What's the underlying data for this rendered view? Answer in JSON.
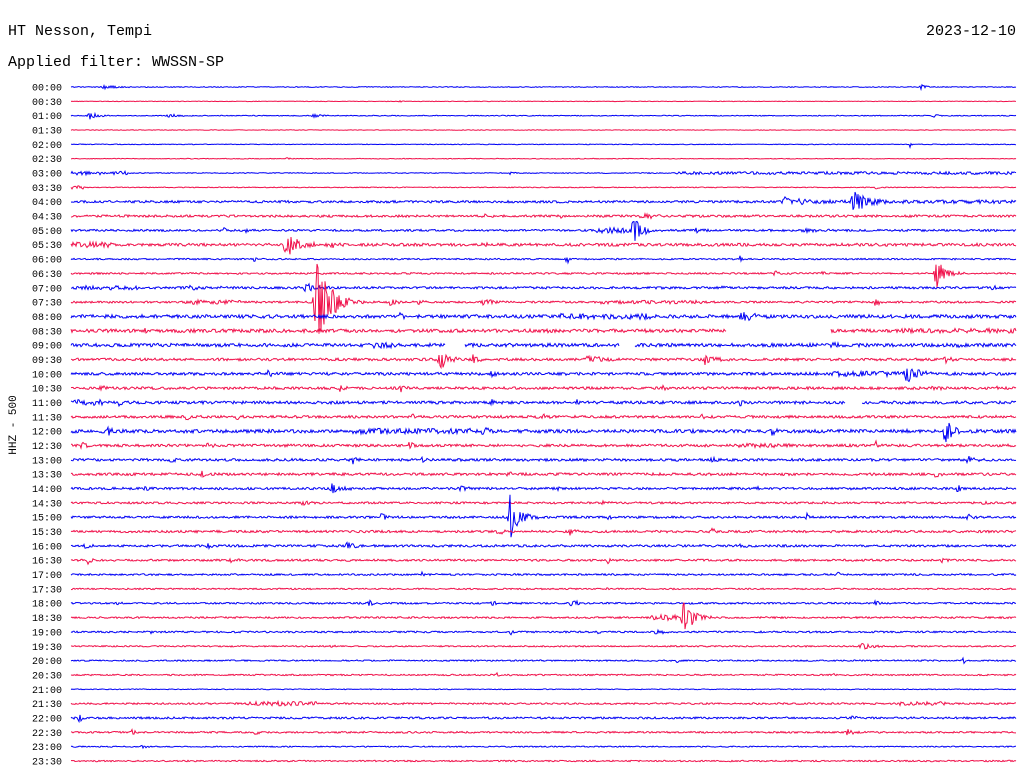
{
  "chart_data": {
    "type": "line",
    "title": "HT Nesson, Tempi",
    "date": "2023-12-10",
    "subtitle": "Applied filter: WWSSN-SP",
    "ylabel": "HHZ - 500",
    "xlim": [
      0,
      30
    ],
    "colors": [
      "#0000f5",
      "#f0104a"
    ],
    "rows": [
      {
        "label": "00:00",
        "noise": 0.03,
        "events": [
          [
            0.9,
            0.15,
            1.2
          ],
          [
            26.9,
            0.22,
            0.5
          ]
        ]
      },
      {
        "label": "00:30",
        "noise": 0.02,
        "events": [
          [
            10.4,
            0.12,
            0.2
          ]
        ]
      },
      {
        "label": "01:00",
        "noise": 0.03,
        "events": [
          [
            0.5,
            0.28,
            0.8
          ],
          [
            3.0,
            0.12,
            0.9
          ],
          [
            7.6,
            0.14,
            0.8
          ],
          [
            27.3,
            0.12,
            0.5
          ]
        ]
      },
      {
        "label": "01:30",
        "noise": 0.02
      },
      {
        "label": "02:00",
        "noise": 0.025,
        "events": [
          [
            26.6,
            0.25,
            0.2
          ]
        ]
      },
      {
        "label": "02:30",
        "noise": 0.025,
        "events": [
          [
            6.8,
            0.08,
            0.3
          ]
        ]
      },
      {
        "label": "03:00",
        "noise": 0.03,
        "noisy": [
          [
            0,
            1.8,
            0.12
          ],
          [
            19.2,
            30,
            0.1
          ]
        ],
        "events": [
          [
            13.9,
            0.1,
            0.3
          ]
        ]
      },
      {
        "label": "03:30",
        "noise": 0.03,
        "noisy": [
          [
            0,
            0.4,
            0.12
          ]
        ],
        "events": [
          [
            25.5,
            0.15,
            0.3
          ]
        ]
      },
      {
        "label": "04:00",
        "noise": 0.08,
        "noisy": [
          [
            23.0,
            30,
            0.12
          ]
        ],
        "events": [
          [
            22.5,
            0.3,
            1.5
          ],
          [
            24.73,
            1.2,
            0.9
          ]
        ]
      },
      {
        "label": "04:30",
        "noise": 0.08,
        "events": [
          [
            13.0,
            0.2,
            0.5
          ],
          [
            15.5,
            0.12,
            0.5
          ],
          [
            18.0,
            0.2,
            1.3
          ]
        ]
      },
      {
        "label": "05:00",
        "noise": 0.07,
        "noisy": [
          [
            16.6,
            17.8,
            0.2
          ]
        ],
        "events": [
          [
            4.8,
            0.25,
            0.3
          ],
          [
            5.5,
            0.3,
            0.3
          ],
          [
            17.75,
            1.05,
            0.8
          ],
          [
            19.8,
            0.25,
            0.4
          ],
          [
            23.1,
            0.15,
            1.6
          ]
        ]
      },
      {
        "label": "05:30",
        "noise": 0.1,
        "noisy": [
          [
            0,
            1.3,
            0.2
          ]
        ],
        "events": [
          [
            6.7,
            0.9,
            1.2
          ],
          [
            8.2,
            0.2,
            0.5
          ],
          [
            13.0,
            0.12,
            0.5
          ],
          [
            23.3,
            0.2,
            0.3
          ]
        ]
      },
      {
        "label": "06:00",
        "noise": 0.05,
        "events": [
          [
            5.8,
            0.3,
            0.2
          ],
          [
            15.7,
            0.35,
            0.3
          ],
          [
            21.2,
            0.25,
            0.2
          ]
        ]
      },
      {
        "label": "06:30",
        "noise": 0.06,
        "events": [
          [
            22.3,
            0.25,
            0.3
          ],
          [
            23.8,
            0.2,
            0.3
          ],
          [
            27.36,
            1.1,
            0.8
          ]
        ]
      },
      {
        "label": "07:00",
        "noise": 0.08,
        "noisy": [
          [
            0,
            2.2,
            0.15
          ]
        ],
        "events": [
          [
            3.6,
            0.2,
            1.5
          ],
          [
            7.3,
            0.25,
            1.3
          ],
          [
            18.7,
            0.15,
            0.5
          ],
          [
            20.6,
            0.15,
            0.5
          ],
          [
            29.2,
            0.2,
            0.3
          ]
        ]
      },
      {
        "label": "07:30",
        "noise": 0.07,
        "noisy": [
          [
            3.6,
            5.4,
            0.15
          ],
          [
            16.8,
            20.0,
            0.12
          ]
        ],
        "events": [
          [
            7.65,
            3.0,
            1.3
          ],
          [
            10.1,
            0.35,
            0.4
          ],
          [
            11.0,
            0.3,
            0.3
          ],
          [
            13.0,
            0.25,
            1.0
          ],
          [
            25.5,
            0.5,
            0.3
          ]
        ]
      },
      {
        "label": "08:00",
        "noise": 0.12,
        "noisy": [
          [
            15.5,
            18.5,
            0.2
          ]
        ],
        "events": [
          [
            10.4,
            0.35,
            0.4
          ],
          [
            21.2,
            0.4,
            1.0
          ],
          [
            29.2,
            0.2,
            0.3
          ]
        ]
      },
      {
        "label": "08:30",
        "noise": 0.12,
        "gaps": [
          [
            20.8,
            24.1
          ]
        ],
        "noisy": [
          [
            26.3,
            30,
            0.16
          ]
        ],
        "events": [
          [
            2.3,
            0.2,
            0.4
          ],
          [
            15.0,
            0.2,
            0.4
          ]
        ]
      },
      {
        "label": "09:00",
        "noise": 0.12,
        "gaps": [
          [
            11.9,
            12.5
          ],
          [
            17.4,
            17.9
          ]
        ],
        "events": [
          [
            9.5,
            0.3,
            1.6
          ],
          [
            24.1,
            0.25,
            0.4
          ],
          [
            28.1,
            0.2,
            0.4
          ]
        ]
      },
      {
        "label": "09:30",
        "noise": 0.09,
        "events": [
          [
            11.62,
            0.8,
            0.7
          ],
          [
            12.7,
            0.35,
            0.6
          ],
          [
            16.3,
            0.3,
            1.1
          ],
          [
            20.06,
            0.55,
            0.7
          ],
          [
            27.7,
            0.25,
            0.4
          ]
        ]
      },
      {
        "label": "10:00",
        "noise": 0.1,
        "noisy": [
          [
            24.1,
            26.4,
            0.18
          ]
        ],
        "events": [
          [
            6.2,
            0.3,
            0.5
          ],
          [
            13.3,
            0.2,
            0.4
          ],
          [
            26.41,
            0.7,
            1.0
          ]
        ]
      },
      {
        "label": "10:30",
        "noise": 0.09,
        "events": [
          [
            0.9,
            0.3,
            0.3
          ],
          [
            8.5,
            0.25,
            0.3
          ],
          [
            10.4,
            0.4,
            0.3
          ],
          [
            18.7,
            0.2,
            0.4
          ],
          [
            27.3,
            0.3,
            0.4
          ],
          [
            29.2,
            0.25,
            0.4
          ]
        ]
      },
      {
        "label": "11:00",
        "noise": 0.1,
        "gaps": [
          [
            24.6,
            25.1
          ]
        ],
        "noisy": [
          [
            0,
            1.0,
            0.2
          ]
        ],
        "events": [
          [
            1.5,
            0.4,
            0.2
          ],
          [
            13.3,
            0.3,
            0.3
          ],
          [
            16.0,
            0.3,
            0.3
          ],
          [
            21.2,
            0.35,
            0.3
          ]
        ]
      },
      {
        "label": "11:30",
        "noise": 0.09,
        "events": [
          [
            3.6,
            0.3,
            0.4
          ],
          [
            5.2,
            0.3,
            0.3
          ],
          [
            10.8,
            0.25,
            0.3
          ],
          [
            14.9,
            0.25,
            0.4
          ],
          [
            19.97,
            0.2,
            0.4
          ]
        ]
      },
      {
        "label": "12:00",
        "noise": 0.12,
        "noisy": [
          [
            8.9,
            12.7,
            0.2
          ]
        ],
        "events": [
          [
            1.1,
            0.3,
            0.5
          ],
          [
            13.0,
            0.35,
            0.6
          ],
          [
            22.2,
            0.25,
            0.4
          ],
          [
            27.68,
            1.1,
            0.6
          ]
        ]
      },
      {
        "label": "12:30",
        "noise": 0.09,
        "noisy": [
          [
            21.2,
            23.1,
            0.14
          ]
        ],
        "events": [
          [
            0.3,
            0.3,
            0.3
          ],
          [
            4.3,
            0.3,
            0.3
          ],
          [
            10.7,
            0.3,
            0.3
          ],
          [
            25.5,
            0.35,
            0.3
          ]
        ]
      },
      {
        "label": "13:00",
        "noise": 0.09,
        "events": [
          [
            3.1,
            0.3,
            0.4
          ],
          [
            8.9,
            0.25,
            0.4
          ],
          [
            11.1,
            0.25,
            0.3
          ],
          [
            20.3,
            0.25,
            0.4
          ],
          [
            28.4,
            0.25,
            0.6
          ]
        ]
      },
      {
        "label": "13:30",
        "noise": 0.09,
        "events": [
          [
            4.1,
            0.25,
            0.3
          ],
          [
            13.8,
            0.3,
            0.3
          ],
          [
            27.4,
            0.3,
            0.3
          ]
        ]
      },
      {
        "label": "14:00",
        "noise": 0.08,
        "events": [
          [
            2.3,
            0.3,
            0.3
          ],
          [
            8.2,
            0.35,
            0.8
          ],
          [
            12.3,
            0.3,
            0.4
          ],
          [
            15.4,
            0.25,
            0.2
          ],
          [
            21.6,
            0.2,
            0.5
          ],
          [
            28.1,
            0.3,
            0.3
          ]
        ]
      },
      {
        "label": "14:30",
        "noise": 0.07,
        "events": [
          [
            7.3,
            0.2,
            0.4
          ],
          [
            16.8,
            0.15,
            0.4
          ],
          [
            28.9,
            0.2,
            0.3
          ]
        ]
      },
      {
        "label": "15:00",
        "noise": 0.08,
        "events": [
          [
            9.8,
            0.3,
            0.4
          ],
          [
            13.84,
            1.6,
            0.8
          ],
          [
            17.0,
            0.3,
            0.3
          ],
          [
            23.3,
            0.3,
            0.4
          ],
          [
            28.4,
            0.25,
            0.4
          ]
        ]
      },
      {
        "label": "15:30",
        "noise": 0.08,
        "events": [
          [
            13.5,
            0.3,
            0.4
          ],
          [
            15.8,
            0.3,
            0.4
          ],
          [
            20.3,
            0.25,
            0.3
          ]
        ]
      },
      {
        "label": "16:00",
        "noise": 0.08,
        "events": [
          [
            0.4,
            0.3,
            0.3
          ],
          [
            4.3,
            0.3,
            0.3
          ],
          [
            8.7,
            0.35,
            0.5
          ],
          [
            21.2,
            0.2,
            0.3
          ]
        ]
      },
      {
        "label": "16:30",
        "noise": 0.07,
        "events": [
          [
            0.5,
            0.35,
            0.3
          ],
          [
            5.0,
            0.25,
            0.4
          ],
          [
            17.0,
            0.3,
            0.3
          ],
          [
            27.6,
            0.2,
            0.5
          ]
        ]
      },
      {
        "label": "17:00",
        "noise": 0.06,
        "events": [
          [
            11.1,
            0.25,
            0.2
          ],
          [
            24.3,
            0.25,
            0.2
          ]
        ]
      },
      {
        "label": "17:30",
        "noise": 0.05,
        "events": [
          [
            17.0,
            0.15,
            0.2
          ]
        ]
      },
      {
        "label": "18:00",
        "noise": 0.06,
        "events": [
          [
            1.4,
            0.2,
            0.3
          ],
          [
            9.4,
            0.4,
            0.4
          ],
          [
            13.3,
            0.35,
            0.4
          ],
          [
            15.8,
            0.3,
            0.6
          ],
          [
            25.5,
            0.35,
            0.3
          ]
        ]
      },
      {
        "label": "18:30",
        "noise": 0.06,
        "noisy": [
          [
            18.4,
            19.3,
            0.2
          ]
        ],
        "events": [
          [
            19.33,
            1.1,
            1.0
          ]
        ]
      },
      {
        "label": "19:00",
        "noise": 0.06,
        "events": [
          [
            2.5,
            0.2,
            0.2
          ],
          [
            13.9,
            0.35,
            0.2
          ],
          [
            16.7,
            0.3,
            0.2
          ],
          [
            18.5,
            0.3,
            0.6
          ]
        ]
      },
      {
        "label": "19:30",
        "noise": 0.05,
        "events": [
          [
            8.2,
            0.2,
            0.3
          ],
          [
            25.0,
            0.35,
            0.8
          ]
        ]
      },
      {
        "label": "20:00",
        "noise": 0.05,
        "events": [
          [
            19.2,
            0.3,
            0.2
          ],
          [
            28.3,
            0.3,
            0.2
          ]
        ]
      },
      {
        "label": "20:30",
        "noise": 0.05,
        "events": [
          [
            13.5,
            0.3,
            0.2
          ],
          [
            24.1,
            0.25,
            0.2
          ]
        ]
      },
      {
        "label": "21:00",
        "noise": 0.03
      },
      {
        "label": "21:30",
        "noise": 0.06,
        "noisy": [
          [
            5.6,
            7.8,
            0.15
          ],
          [
            26.3,
            27.8,
            0.13
          ]
        ]
      },
      {
        "label": "22:00",
        "noise": 0.07,
        "events": [
          [
            0.2,
            0.3,
            0.4
          ],
          [
            24.7,
            0.3,
            0.3
          ]
        ]
      },
      {
        "label": "22:30",
        "noise": 0.06,
        "events": [
          [
            1.9,
            0.3,
            0.3
          ],
          [
            5.8,
            0.25,
            0.3
          ],
          [
            24.6,
            0.3,
            0.4
          ]
        ]
      },
      {
        "label": "23:00",
        "noise": 0.04,
        "events": [
          [
            2.2,
            0.2,
            0.3
          ]
        ]
      },
      {
        "label": "23:30",
        "noise": 0.05
      }
    ]
  }
}
